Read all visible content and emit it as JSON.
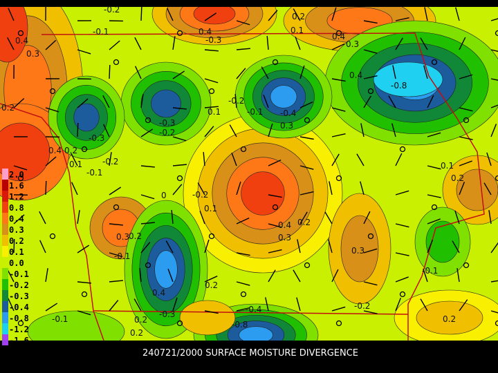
{
  "caption": "240721/2000 SURFACE MOISTURE DIVERGENCE",
  "legend": [
    {
      "label": "2.0",
      "color": "#ff9ec8"
    },
    {
      "label": "1.6",
      "color": "#b80000"
    },
    {
      "label": "1.2",
      "color": "#d81808"
    },
    {
      "label": "0.8",
      "color": "#f04010"
    },
    {
      "label": "0.4",
      "color": "#ff7818"
    },
    {
      "label": "0.3",
      "color": "#d89018"
    },
    {
      "label": "0.2",
      "color": "#f0c000"
    },
    {
      "label": "0.1",
      "color": "#f8f000"
    },
    {
      "label": "0.0",
      "color": "#c8f000"
    },
    {
      "label": "-0.1",
      "color": "#80e000"
    },
    {
      "label": "-0.2",
      "color": "#20c000"
    },
    {
      "label": "-0.3",
      "color": "#108838"
    },
    {
      "label": "-0.4",
      "color": "#1c5c9c"
    },
    {
      "label": "-0.8",
      "color": "#2c9cf0"
    },
    {
      "label": "-1.2",
      "color": "#20d0f0"
    },
    {
      "label": "-1.6",
      "color": "#a040f0"
    }
  ],
  "contour_labels": [
    "-0.2",
    "0.4",
    "0.3",
    "-0.1",
    "0.4",
    "-0.3",
    "0.2",
    "0.1",
    "0.4",
    "0.3",
    "0.4",
    "-0.8",
    "0.2",
    "0.1",
    "-0.1",
    "-0.4",
    "-0.3",
    "-0.2",
    "0.3",
    "-0.3",
    "0.4",
    "0.2",
    "-0.2",
    "0.1",
    "-0.1",
    "0.1",
    "-0.2",
    "0.2",
    "0",
    "-0.2",
    "0.1",
    "0.4",
    "0.2",
    "0.3",
    "0.3",
    "0.2",
    "-0.1",
    "0.3",
    "0.2",
    "0.4",
    "-0.3",
    "-0.4",
    "-0.8",
    "-0.2",
    "-0.1",
    "0.2",
    "-0.1",
    "0.2",
    "0.2"
  ]
}
